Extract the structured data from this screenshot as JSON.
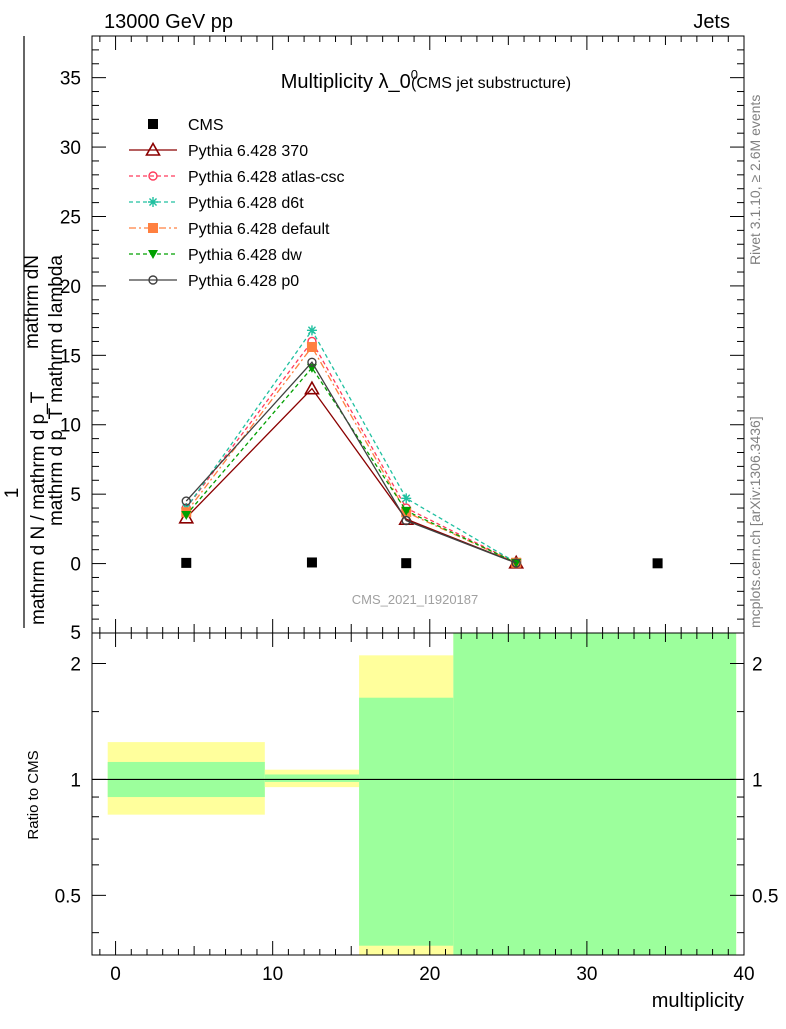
{
  "header": {
    "left": "13000 GeV pp",
    "right": "Jets"
  },
  "side_text": {
    "rivet": "Rivet 3.1.10, ≥ 2.6M events",
    "mcplots": "mcplots.cern.ch [arXiv:1306.3436]"
  },
  "watermark": "CMS_2021_I1920187",
  "colors": {
    "cms": "#000000",
    "p370": "#8b0000",
    "atlas": "#ff3b5c",
    "d6t": "#20c0a0",
    "default": "#ff8040",
    "dw": "#00a000",
    "p0": "#404040",
    "band_inner": "#9cff9c",
    "band_outer": "#ffff9c"
  },
  "chart_data": [
    {
      "type": "line",
      "title": "Multiplicity λ_0",
      "title_sup": "0",
      "subtitle": "(CMS jet substructure)",
      "ylabel_num": "mathrm dN",
      "ylabel_den": "mathrm d p_T mathrm d lambda",
      "ylabel_left": "1",
      "ylabel_bottom": "mathrm d N / mathrm d p_T",
      "xlim": [
        -1.5,
        40
      ],
      "ylim": [
        -5,
        38
      ],
      "yticks": [
        0,
        5,
        10,
        15,
        20,
        25,
        30,
        35
      ],
      "ytick_labels": [
        "0",
        "5",
        "10",
        "15",
        "20",
        "25",
        "30",
        "35"
      ],
      "ylabel_bottom_tick": "5",
      "legend_position": "top-left",
      "series": [
        {
          "name": "CMS",
          "style": "data",
          "x": [
            4.5,
            12.5,
            18.5,
            25.5,
            34.5
          ],
          "y": [
            0.05,
            0.08,
            0.03,
            0.01,
            0.02
          ]
        },
        {
          "name": "Pythia 6.428 370",
          "style": "triangle",
          "x": [
            4.5,
            12.5,
            18.5,
            25.5
          ],
          "y": [
            3.3,
            12.6,
            3.2,
            0.05
          ]
        },
        {
          "name": "Pythia 6.428 atlas-csc",
          "style": "circle-dashed",
          "x": [
            4.5,
            12.5,
            18.5,
            25.5
          ],
          "y": [
            4.0,
            16.0,
            4.0,
            0.06
          ]
        },
        {
          "name": "Pythia 6.428 d6t",
          "style": "star-dashed",
          "x": [
            4.5,
            12.5,
            18.5,
            25.5
          ],
          "y": [
            4.0,
            16.8,
            4.7,
            0.07
          ]
        },
        {
          "name": "Pythia 6.428 default",
          "style": "square-dashdot",
          "x": [
            4.5,
            12.5,
            18.5,
            25.5
          ],
          "y": [
            3.7,
            15.6,
            3.7,
            0.06
          ]
        },
        {
          "name": "Pythia 6.428 dw",
          "style": "tridown-dashed",
          "x": [
            4.5,
            12.5,
            18.5,
            25.5
          ],
          "y": [
            3.5,
            14.1,
            3.8,
            0.05
          ]
        },
        {
          "name": "Pythia 6.428 p0",
          "style": "circle-solid",
          "x": [
            4.5,
            12.5,
            18.5,
            25.5
          ],
          "y": [
            4.5,
            14.5,
            3.1,
            0.04
          ]
        }
      ]
    },
    {
      "type": "area",
      "ylabel": "Ratio to CMS",
      "xlabel": "multiplicity",
      "xlim": [
        -1.5,
        40
      ],
      "ylim": [
        0.35,
        2.4
      ],
      "log_scale_y": true,
      "yticks": [
        0.5,
        1,
        2
      ],
      "ytick_labels": [
        "0.5",
        "1",
        "2"
      ],
      "xticks": [
        0,
        10,
        20,
        30,
        40
      ],
      "xtick_labels": [
        "0",
        "10",
        "20",
        "30",
        "40"
      ],
      "reference_line": 1,
      "bins": [
        {
          "x0": -0.5,
          "x1": 9.5,
          "inner": [
            0.9,
            1.11
          ],
          "outer": [
            0.81,
            1.25
          ]
        },
        {
          "x0": 9.5,
          "x1": 15.5,
          "inner": [
            0.985,
            1.03
          ],
          "outer": [
            0.955,
            1.06
          ]
        },
        {
          "x0": 15.5,
          "x1": 21.5,
          "inner": [
            0.37,
            1.63
          ],
          "outer": [
            0.35,
            2.1
          ]
        },
        {
          "x0": 21.5,
          "x1": 39.5,
          "inner": [
            0.35,
            2.4
          ],
          "outer": [
            0.35,
            2.4
          ]
        }
      ]
    }
  ]
}
